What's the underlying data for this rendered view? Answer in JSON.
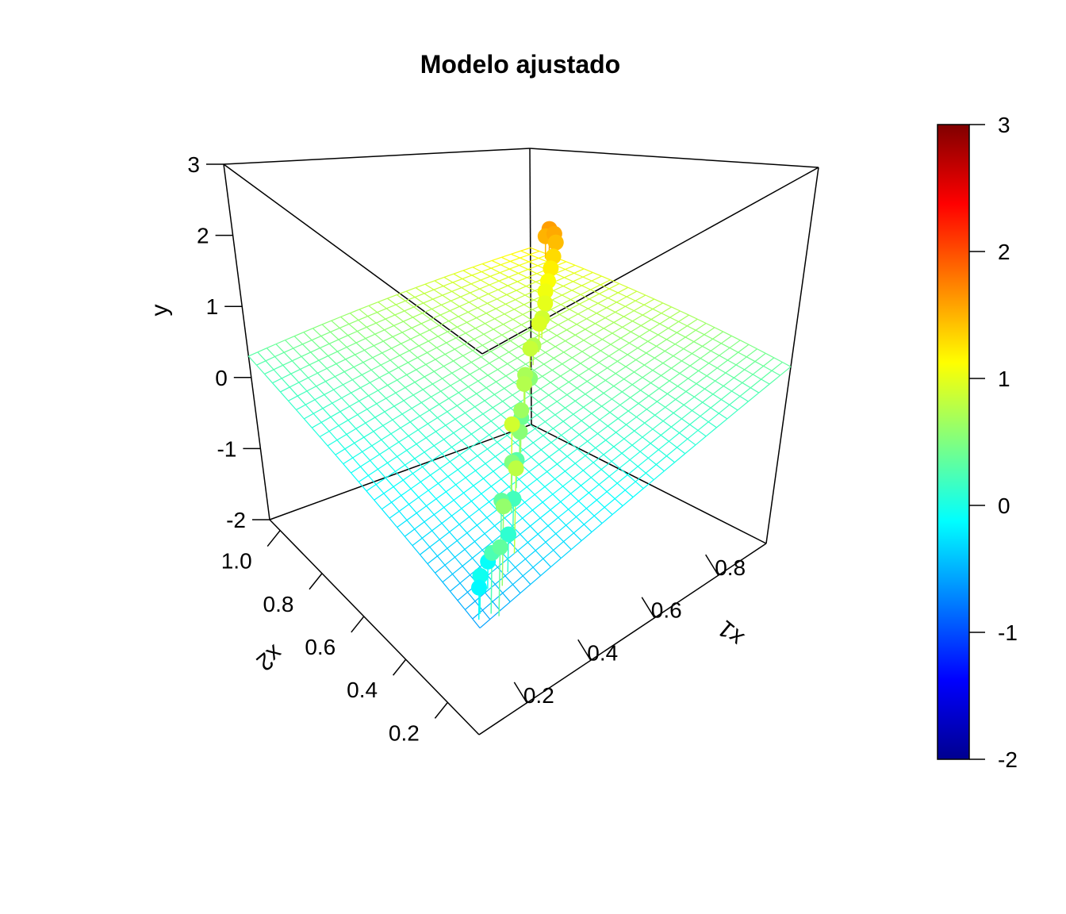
{
  "chart_data": {
    "type": "scatter3d",
    "title": "Modelo ajustado",
    "axes": {
      "x": {
        "label": "x1",
        "range": [
          0.05,
          0.95
        ],
        "ticks": [
          "0.2",
          "0.4",
          "0.6",
          "0.8"
        ],
        "tick_values": [
          0.2,
          0.4,
          0.6,
          0.8
        ]
      },
      "y": {
        "label": "x2",
        "range": [
          0.05,
          1.05
        ],
        "ticks": [
          "0.2",
          "0.4",
          "0.6",
          "0.8",
          "1.0"
        ],
        "tick_values": [
          0.2,
          0.4,
          0.6,
          0.8,
          1.0
        ]
      },
      "z": {
        "label": "y",
        "range": [
          -2,
          3
        ],
        "ticks": [
          "-2",
          "-1",
          "0",
          "1",
          "2",
          "3"
        ],
        "tick_values": [
          -2,
          -1,
          0,
          1,
          2,
          3
        ]
      }
    },
    "fitted_plane": {
      "type": "surface_grid",
      "corners": [
        {
          "x1": 0.05,
          "x2": 0.05,
          "y": -0.6
        },
        {
          "x1": 0.95,
          "x2": 0.05,
          "y": 0.35
        },
        {
          "x1": 0.05,
          "x2": 1.05,
          "y": 0.3
        },
        {
          "x1": 0.95,
          "x2": 1.05,
          "y": 1.2
        }
      ],
      "grid_lines": 30
    },
    "points": [
      {
        "x1": 0.06,
        "x2": 0.07,
        "y": -0.15
      },
      {
        "x1": 0.07,
        "x2": 0.08,
        "y": -0.05
      },
      {
        "x1": 0.09,
        "x2": 0.06,
        "y": 0.25
      },
      {
        "x1": 0.1,
        "x2": 0.04,
        "y": 0.35
      },
      {
        "x1": 0.12,
        "x2": 0.12,
        "y": -0.1
      },
      {
        "x1": 0.15,
        "x2": 0.1,
        "y": 0.6
      },
      {
        "x1": 0.18,
        "x2": 0.12,
        "y": 0.1
      },
      {
        "x1": 0.2,
        "x2": 0.18,
        "y": 0.35
      },
      {
        "x1": 0.22,
        "x2": 0.15,
        "y": 0.8
      },
      {
        "x1": 0.25,
        "x2": 0.2,
        "y": 0.2
      },
      {
        "x1": 0.28,
        "x2": 0.25,
        "y": 0.5
      },
      {
        "x1": 0.3,
        "x2": 0.28,
        "y": 0.9
      },
      {
        "x1": 0.33,
        "x2": 0.3,
        "y": 0.3
      },
      {
        "x1": 0.36,
        "x2": 0.33,
        "y": 0.55
      },
      {
        "x1": 0.4,
        "x2": 0.38,
        "y": 0.65
      },
      {
        "x1": 0.43,
        "x2": 0.42,
        "y": 0.4
      },
      {
        "x1": 0.46,
        "x2": 0.45,
        "y": 0.75
      },
      {
        "x1": 0.5,
        "x2": 0.5,
        "y": 0.7
      },
      {
        "x1": 0.53,
        "x2": 0.52,
        "y": 0.55
      },
      {
        "x1": 0.56,
        "x2": 0.56,
        "y": 0.85
      },
      {
        "x1": 0.6,
        "x2": 0.6,
        "y": 0.75
      },
      {
        "x1": 0.64,
        "x2": 0.63,
        "y": 0.95
      },
      {
        "x1": 0.68,
        "x2": 0.67,
        "y": 0.9
      },
      {
        "x1": 0.72,
        "x2": 0.71,
        "y": 1.0
      },
      {
        "x1": 0.76,
        "x2": 0.76,
        "y": 1.05
      },
      {
        "x1": 0.8,
        "x2": 0.8,
        "y": 1.1
      },
      {
        "x1": 0.84,
        "x2": 0.84,
        "y": 1.2
      },
      {
        "x1": 0.88,
        "x2": 0.88,
        "y": 1.3
      },
      {
        "x1": 0.92,
        "x2": 0.92,
        "y": 1.45
      },
      {
        "x1": 0.94,
        "x2": 0.95,
        "y": 1.55
      },
      {
        "x1": 0.93,
        "x2": 0.97,
        "y": 1.5
      },
      {
        "x1": 0.95,
        "x2": 0.98,
        "y": 1.6
      }
    ],
    "drop_lines": true,
    "colorbar": {
      "range": [
        -2,
        3
      ],
      "ticks": [
        "-2",
        "-1",
        "0",
        "1",
        "2",
        "3"
      ],
      "tick_values": [
        -2,
        -1,
        0,
        1,
        2,
        3
      ],
      "palette": [
        "#00008F",
        "#0000FF",
        "#0080FF",
        "#00FFFF",
        "#80FF80",
        "#FFFF00",
        "#FF8000",
        "#FF0000",
        "#800000"
      ],
      "placement": "right"
    },
    "box": true,
    "grid": false
  }
}
